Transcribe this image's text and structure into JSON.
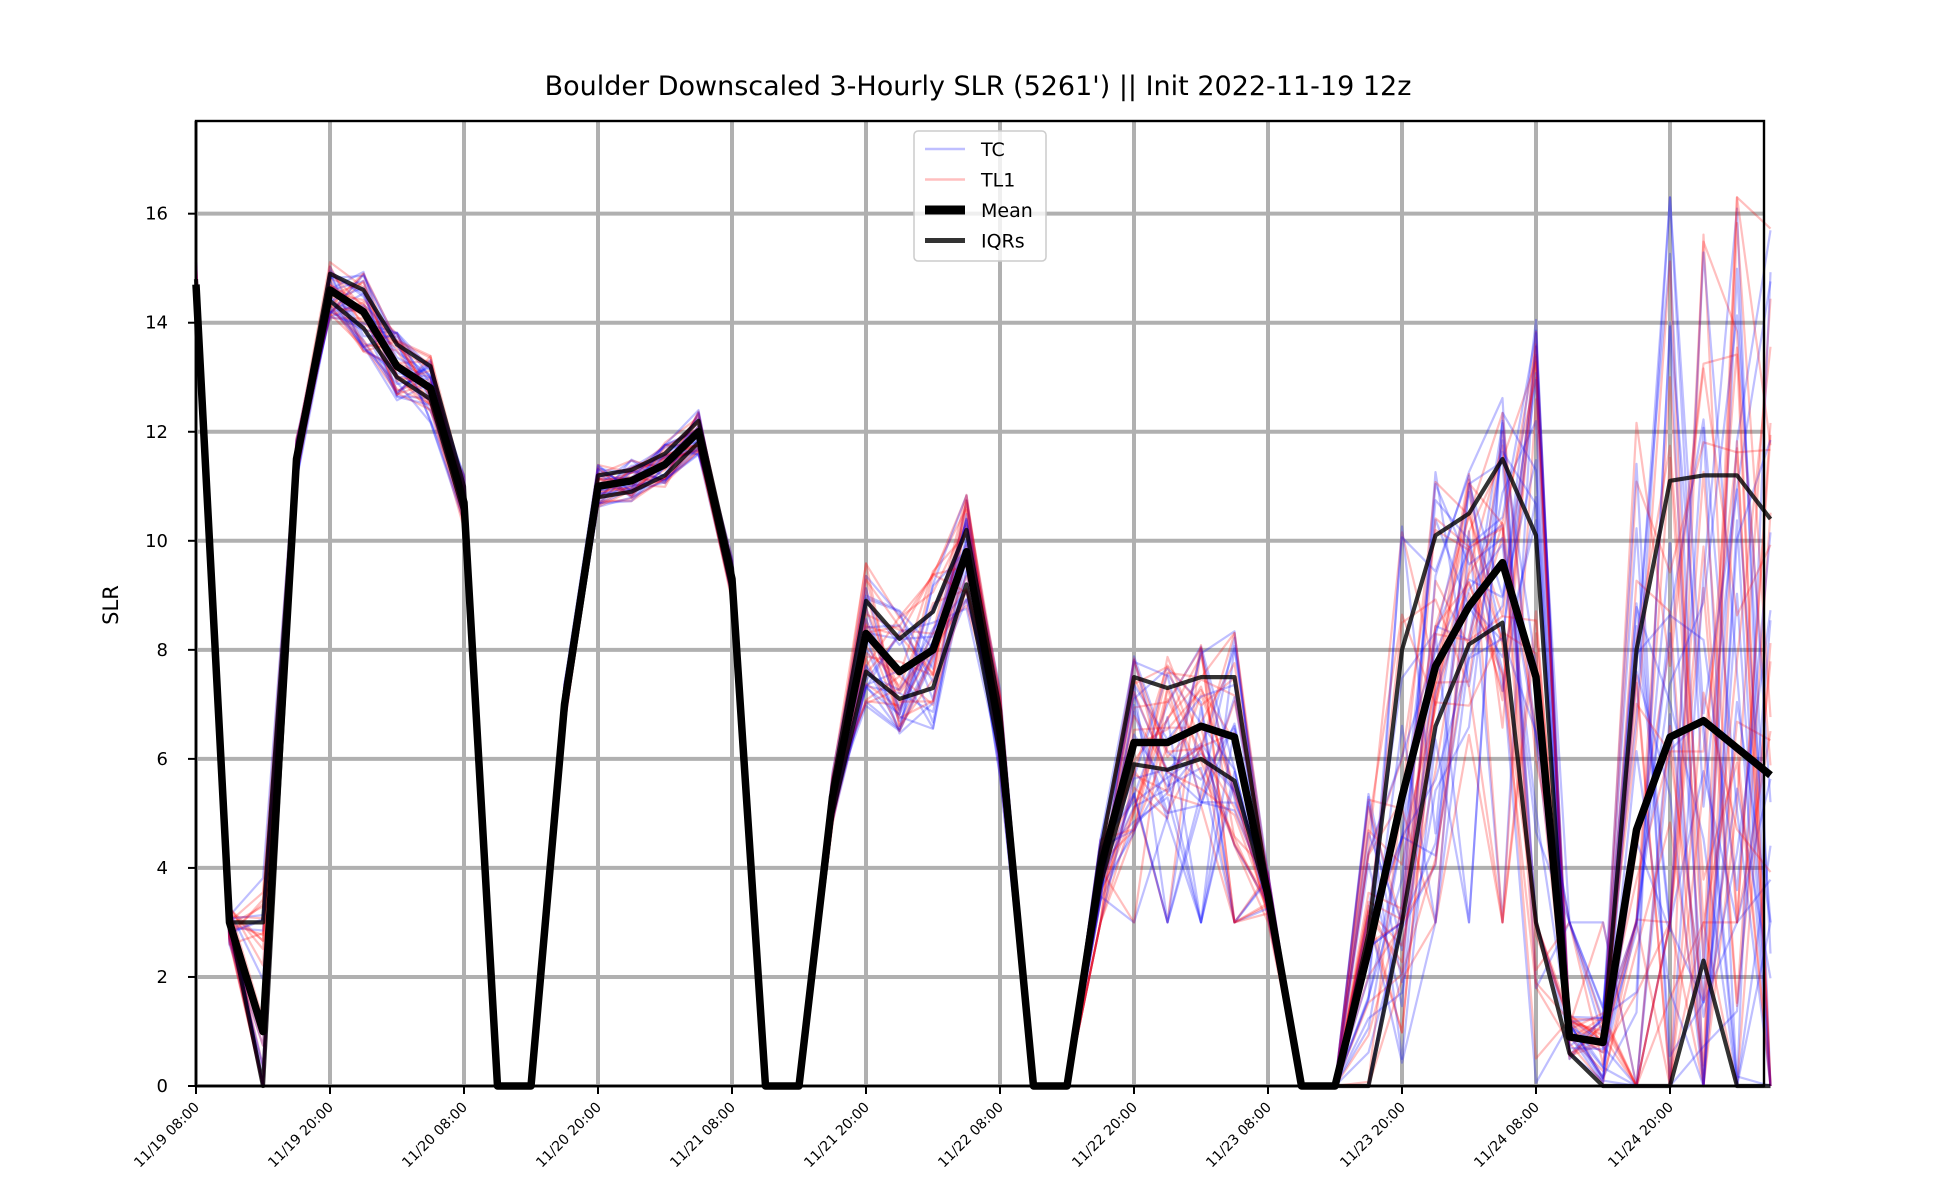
{
  "chart_data": {
    "type": "line",
    "title": "Boulder Downscaled 3-Hourly SLR (5261') || Init 2022-11-19 12z",
    "xlabel": "",
    "ylabel": "SLR",
    "ylim": [
      0,
      17.7
    ],
    "yticks": [
      0,
      2,
      4,
      6,
      8,
      10,
      12,
      14,
      16
    ],
    "x_tick_labels": [
      "11/19 08:00",
      "11/19 20:00",
      "11/20 08:00",
      "11/20 20:00",
      "11/21 08:00",
      "11/21 20:00",
      "11/22 08:00",
      "11/22 20:00",
      "11/23 08:00",
      "11/23 20:00",
      "11/24 08:00",
      "11/24 20:00"
    ],
    "x_tick_interval_hours": 12,
    "x_step_hours": 3,
    "grid": true,
    "legend_position": "upper center",
    "legend": [
      {
        "label": "TC",
        "color": "#0000ff",
        "alpha": 0.25,
        "width": "thin"
      },
      {
        "label": "TL1",
        "color": "#ff0000",
        "alpha": 0.25,
        "width": "thin"
      },
      {
        "label": "Mean",
        "color": "#000000",
        "alpha": 1.0,
        "width": "thick"
      },
      {
        "label": "IQRs",
        "color": "#000000",
        "alpha": 0.8,
        "width": "medium"
      }
    ],
    "series": [
      {
        "name": "Mean",
        "values": [
          14.7,
          3.0,
          1.0,
          11.5,
          14.6,
          14.2,
          13.2,
          12.8,
          10.7,
          0,
          0,
          7.0,
          11.0,
          11.1,
          11.4,
          12.0,
          9.3,
          0,
          0,
          5.3,
          8.3,
          7.6,
          8.0,
          9.8,
          6.5,
          0,
          0,
          4.0,
          6.3,
          6.3,
          6.6,
          6.4,
          3.5,
          0,
          0,
          2.5,
          5.3,
          7.7,
          8.8,
          9.6,
          7.5,
          0.9,
          0.8,
          4.7,
          6.4,
          6.7,
          6.2,
          5.7
        ]
      },
      {
        "name": "IQR upper",
        "values": [
          14.8,
          3.0,
          3.0,
          11.6,
          14.9,
          14.6,
          13.6,
          13.2,
          11.0,
          0,
          0,
          7.2,
          11.2,
          11.3,
          11.6,
          12.2,
          9.5,
          0,
          0,
          5.5,
          8.9,
          8.2,
          8.7,
          10.2,
          6.9,
          0,
          0,
          4.3,
          7.5,
          7.3,
          7.5,
          7.5,
          3.6,
          0,
          0,
          2.8,
          8.0,
          10.1,
          10.5,
          11.5,
          10.1,
          0.9,
          0.8,
          8.0,
          11.1,
          11.2,
          11.2,
          10.4
        ]
      },
      {
        "name": "IQR lower",
        "values": [
          14.5,
          3.0,
          0,
          11.4,
          14.4,
          13.9,
          13.0,
          12.6,
          10.5,
          0,
          0,
          6.8,
          10.8,
          10.9,
          11.2,
          11.8,
          9.1,
          0,
          0,
          5.0,
          7.6,
          7.1,
          7.3,
          9.2,
          6.1,
          0,
          0,
          3.7,
          5.9,
          5.8,
          6.0,
          5.6,
          3.4,
          0,
          0,
          0,
          3.0,
          6.6,
          8.1,
          8.5,
          3.0,
          0.6,
          0,
          0,
          0,
          2.3,
          0,
          0
        ]
      }
    ]
  }
}
